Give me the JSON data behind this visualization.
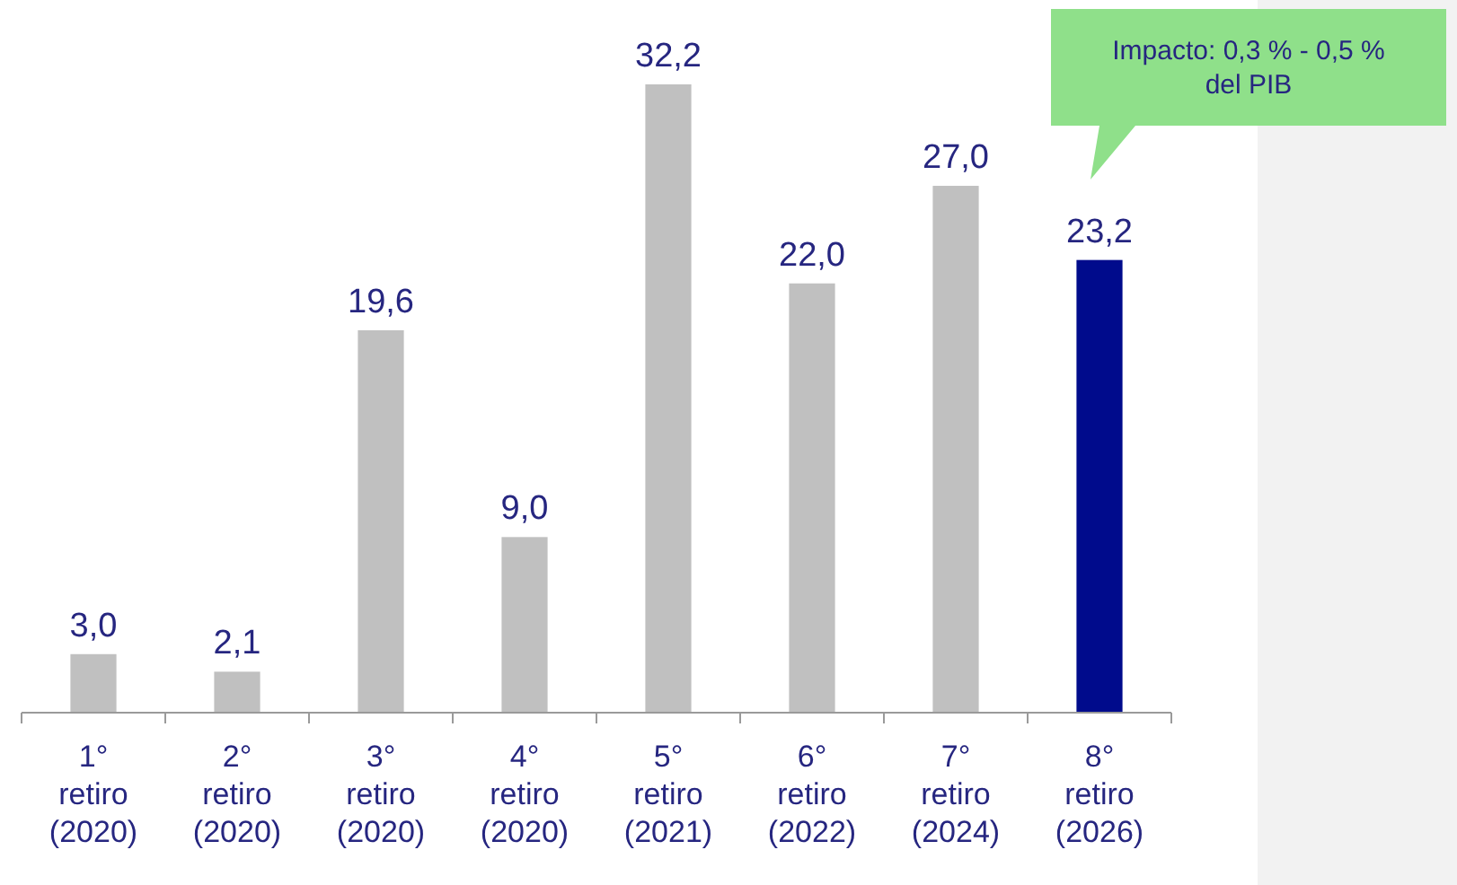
{
  "chart_data": {
    "type": "bar",
    "categories": [
      "1°\nretiro\n(2020)",
      "2°\nretiro\n(2020)",
      "3°\nretiro\n(2020)",
      "4°\nretiro\n(2020)",
      "5°\nretiro\n(2021)",
      "6°\nretiro\n(2022)",
      "7°\nretiro\n(2024)",
      "8°\nretiro\n(2026)"
    ],
    "values": [
      3.0,
      2.1,
      19.6,
      9.0,
      32.2,
      22.0,
      27.0,
      23.2
    ],
    "value_labels": [
      "3,0",
      "2,1",
      "19,6",
      "9,0",
      "32,2",
      "22,0",
      "27,0",
      "23,2"
    ],
    "colors": [
      "#c0c0c0",
      "#c0c0c0",
      "#c0c0c0",
      "#c0c0c0",
      "#c0c0c0",
      "#c0c0c0",
      "#c0c0c0",
      "#000b8c"
    ],
    "annotations": [
      "Impacto: 0,3 % - 0,5 %\ndel PIB"
    ]
  }
}
